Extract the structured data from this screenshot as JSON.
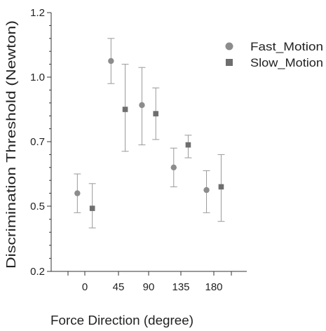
{
  "chart_data": {
    "type": "scatter",
    "title": "",
    "xlabel": "Force Direction (degree)",
    "ylabel": "Discrimination Threshold (Newton)",
    "x_ticks": [
      "0",
      "45",
      "90",
      "135",
      "180"
    ],
    "y_ticks": [
      "0.2",
      "0.5",
      "0.7",
      "1.0",
      "1.2"
    ],
    "xlim": [
      -45,
      225
    ],
    "ylim": [
      0.2,
      1.2
    ],
    "grid": false,
    "legend": "top-right",
    "error_bars": true,
    "series": [
      {
        "name": "Fast_Motion",
        "marker": "circle",
        "color": "#8c8c8c",
        "x": [
          -10,
          35,
          80,
          125,
          170
        ],
        "y": [
          0.54,
          1.05,
          0.87,
          0.62,
          0.55
        ],
        "err_low": [
          0.47,
          0.97,
          0.69,
          0.56,
          0.47
        ],
        "err_high": [
          0.6,
          1.12,
          1.03,
          0.68,
          0.61
        ]
      },
      {
        "name": "Slow_Motion",
        "marker": "square",
        "color": "#6e6e6e",
        "x": [
          10,
          55,
          100,
          145,
          190
        ],
        "y": [
          0.49,
          0.85,
          0.83,
          0.69,
          0.56
        ],
        "err_low": [
          0.4,
          0.67,
          0.71,
          0.65,
          0.43
        ],
        "err_high": [
          0.57,
          1.04,
          0.95,
          0.73,
          0.66
        ]
      }
    ]
  }
}
